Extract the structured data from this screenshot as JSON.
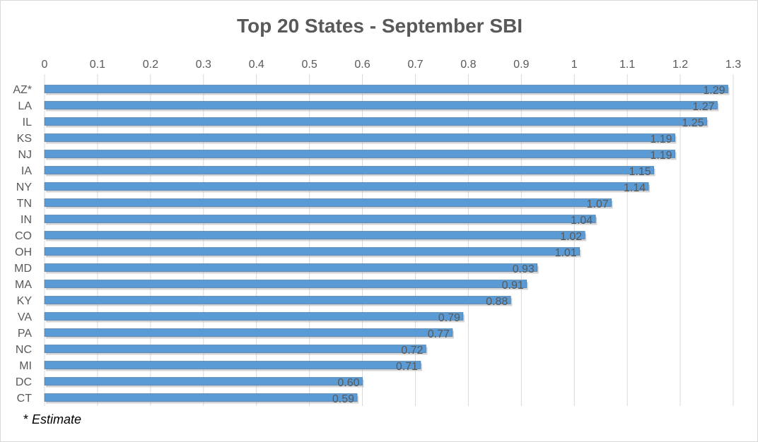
{
  "chart_data": {
    "type": "bar",
    "orientation": "horizontal",
    "title": "Top 20 States - September SBI",
    "xlabel": "",
    "ylabel": "",
    "xlim": [
      0,
      1.3
    ],
    "x_ticks": [
      "0",
      "0.1",
      "0.2",
      "0.3",
      "0.4",
      "0.5",
      "0.6",
      "0.7",
      "0.8",
      "0.9",
      "1",
      "1.1",
      "1.2",
      "1.3"
    ],
    "x_axis_position": "top",
    "grid": true,
    "legend": "none",
    "categories": [
      "AZ*",
      "LA",
      "IL",
      "KS",
      "NJ",
      "IA",
      "NY",
      "TN",
      "IN",
      "CO",
      "OH",
      "MD",
      "MA",
      "KY",
      "VA",
      "PA",
      "NC",
      "MI",
      "DC",
      "CT"
    ],
    "values": [
      1.29,
      1.27,
      1.25,
      1.19,
      1.19,
      1.15,
      1.14,
      1.07,
      1.04,
      1.02,
      1.01,
      0.93,
      0.91,
      0.88,
      0.79,
      0.77,
      0.72,
      0.71,
      0.6,
      0.59
    ],
    "data_labels": [
      "1.29",
      "1.27",
      "1.25",
      "1.19",
      "1.19",
      "1.15",
      "1.14",
      "1.07",
      "1.04",
      "1.02",
      "1.01",
      "0.93",
      "0.91",
      "0.88",
      "0.79",
      "0.77",
      "0.72",
      "0.71",
      "0.60",
      "0.59"
    ],
    "colors": {
      "bar": "#5b9bd5",
      "bar_edge": "#41719c",
      "grid": "#d9d9d9",
      "text": "#595959"
    }
  },
  "footnote": {
    "asterisk": "*",
    "text": "Estimate"
  }
}
